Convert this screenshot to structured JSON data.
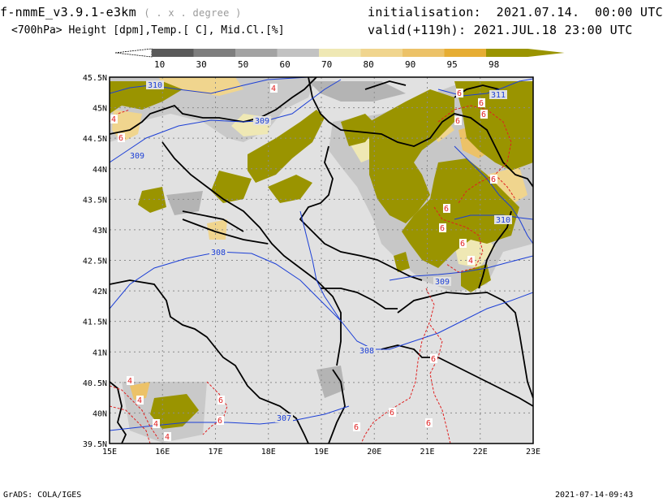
{
  "header": {
    "model": "f-nmmE_v3.9.1-e3km",
    "units_note": "( . x . degree )",
    "fields": "<700hPa> Height [dpm],Temp.[ C], Mid.Cl.[%]",
    "init_label": "initialisation:",
    "init_value": "2021.07.14.  00:00 UTC",
    "valid_label": "valid(+119h):",
    "valid_value": "2021.JUL.18 23:00 UTC"
  },
  "colorbar": {
    "labels": [
      "10",
      "30",
      "50",
      "60",
      "70",
      "80",
      "90",
      "95",
      "98"
    ],
    "colors": [
      "#5a5a5a",
      "#7e7e7e",
      "#a3a3a3",
      "#c2c2c2",
      "#efe8b4",
      "#f0d58e",
      "#ecc268",
      "#e6ad33",
      "#9a9400"
    ]
  },
  "map": {
    "lat_labels": [
      "45.5N",
      "45N",
      "44.5N",
      "44N",
      "43.5N",
      "43N",
      "42.5N",
      "42N",
      "41.5N",
      "41N",
      "40.5N",
      "40N",
      "39.5N"
    ],
    "lon_labels": [
      "15E",
      "16E",
      "17E",
      "18E",
      "19E",
      "20E",
      "21E",
      "22E",
      "23E"
    ],
    "height_contours": [
      "310",
      "309",
      "309",
      "311",
      "310",
      "308",
      "309",
      "308",
      "307"
    ],
    "temp_contours": [
      "4",
      "4",
      "6",
      "6",
      "6",
      "6",
      "6",
      "6",
      "6",
      "6",
      "6",
      "4",
      "4",
      "4",
      "4",
      "4",
      "6",
      "6",
      "6",
      "6",
      "6",
      "6"
    ],
    "colors": {
      "land_bg": "#e1e1e1",
      "cloud_high": "#9a9400",
      "height_line": "#1c3fd6",
      "temp_line": "#e02020",
      "border": "#000000",
      "grid": "#8c8c8c"
    }
  },
  "footer": {
    "left": "GrADS: COLA/IGES",
    "right": "2021-07-14-09:43"
  }
}
